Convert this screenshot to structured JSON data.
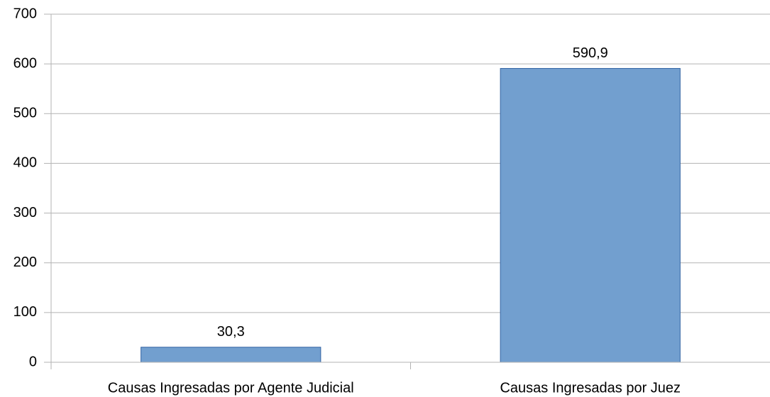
{
  "chart_data": {
    "type": "bar",
    "categories": [
      "Causas Ingresadas por Agente Judicial",
      "Causas Ingresadas por Juez"
    ],
    "values": [
      30.3,
      590.9
    ],
    "value_labels": [
      "30,3",
      "590,9"
    ],
    "color": "#729fcf",
    "ylim": [
      0,
      700
    ],
    "yticks": [
      0,
      100,
      200,
      300,
      400,
      500,
      600,
      700
    ],
    "grid": true
  }
}
